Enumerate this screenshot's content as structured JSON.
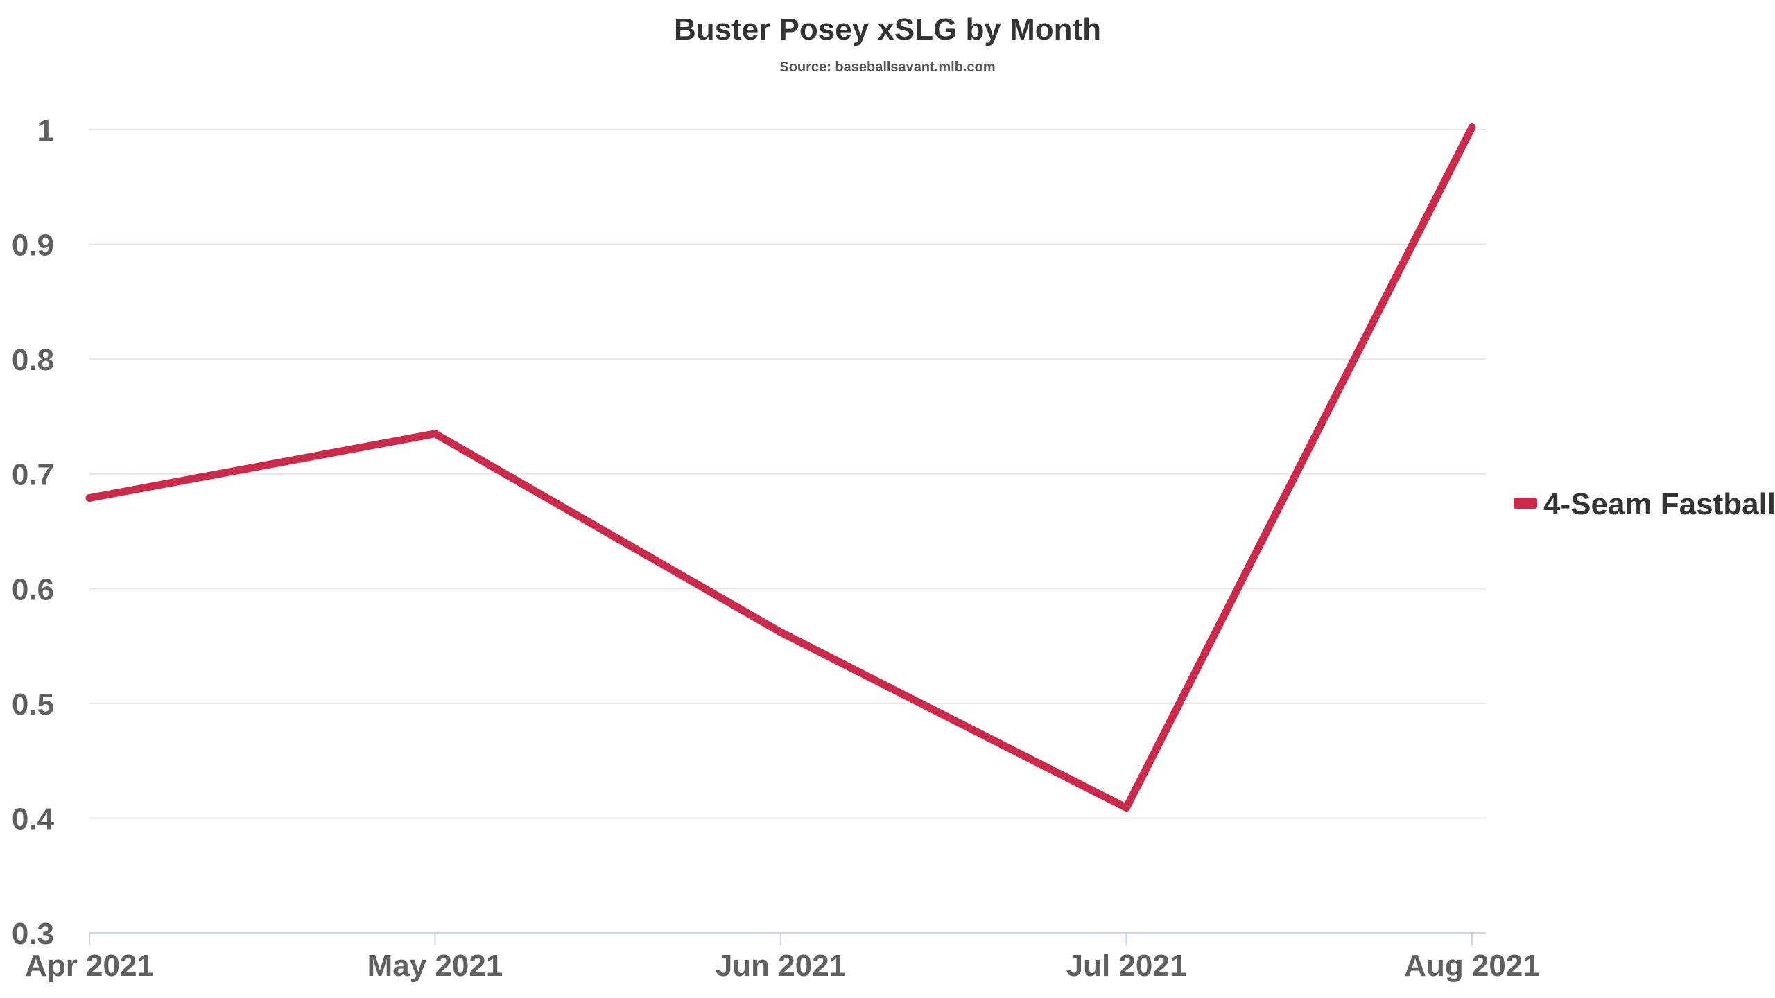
{
  "chart_data": {
    "type": "line",
    "title": "Buster Posey xSLG by Month",
    "subtitle": "Source: baseballsavant.mlb.com",
    "xlabel": "",
    "ylabel": "",
    "categories": [
      "Apr 2021",
      "May 2021",
      "Jun 2021",
      "Jul 2021",
      "Aug 2021"
    ],
    "series": [
      {
        "name": "4-Seam Fastball",
        "color": "#cc2a4a",
        "values": [
          0.679,
          0.735,
          0.562,
          0.409,
          1.002
        ]
      }
    ],
    "ylim": [
      0.3,
      1.0
    ],
    "yticks": [
      "0.3",
      "0.4",
      "0.5",
      "0.6",
      "0.7",
      "0.8",
      "0.9",
      "1"
    ],
    "grid": true,
    "legend": "right"
  }
}
